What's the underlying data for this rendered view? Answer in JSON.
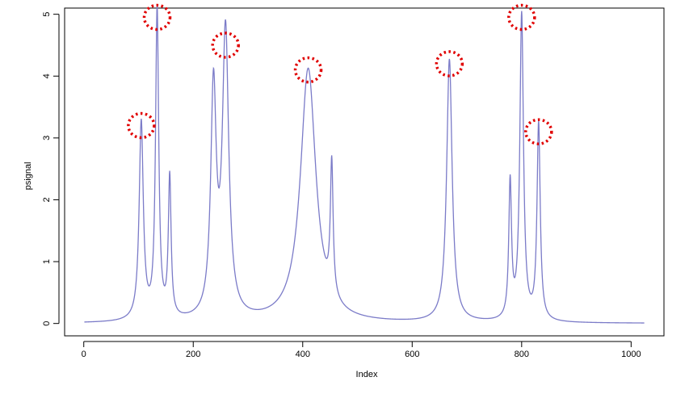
{
  "chart_data": {
    "type": "line",
    "title": "",
    "xlabel": "Index",
    "ylabel": "psignal",
    "xlim": [
      -35,
      1060
    ],
    "ylim": [
      -0.2,
      5.1
    ],
    "x_ticks": [
      0,
      200,
      400,
      600,
      800,
      1000
    ],
    "y_ticks": [
      0,
      1,
      2,
      3,
      4,
      5
    ],
    "x_tick_labels": [
      "0",
      "200",
      "400",
      "600",
      "800",
      "1000"
    ],
    "y_tick_labels": [
      "0",
      "1",
      "2",
      "3",
      "4",
      "5"
    ],
    "grid": false,
    "line_color": "#7b7bc8",
    "marker_color": "#e00000",
    "series": [
      {
        "x_range": [
          1,
          1024
        ],
        "baseline": 0,
        "peaks": [
          {
            "x": 105,
            "height": 3.2,
            "width": 4.5
          },
          {
            "x": 134,
            "height": 5.0,
            "width": 3.5
          },
          {
            "x": 157,
            "height": 2.27,
            "width": 3
          },
          {
            "x": 237,
            "height": 3.65,
            "width": 6
          },
          {
            "x": 259,
            "height": 4.6,
            "width": 7
          },
          {
            "x": 410,
            "height": 4.1,
            "width": 17
          },
          {
            "x": 453,
            "height": 2.15,
            "width": 3
          },
          {
            "x": 668,
            "height": 4.25,
            "width": 6
          },
          {
            "x": 779,
            "height": 2.2,
            "width": 3
          },
          {
            "x": 800,
            "height": 4.95,
            "width": 4
          },
          {
            "x": 831,
            "height": 3.18,
            "width": 3.5
          }
        ]
      }
    ],
    "detected_peaks": [
      {
        "x": 105,
        "y": 3.2
      },
      {
        "x": 134,
        "y": 4.95
      },
      {
        "x": 259,
        "y": 4.5
      },
      {
        "x": 410,
        "y": 4.1
      },
      {
        "x": 668,
        "y": 4.2
      },
      {
        "x": 800,
        "y": 4.95
      },
      {
        "x": 831,
        "y": 3.1
      }
    ]
  }
}
